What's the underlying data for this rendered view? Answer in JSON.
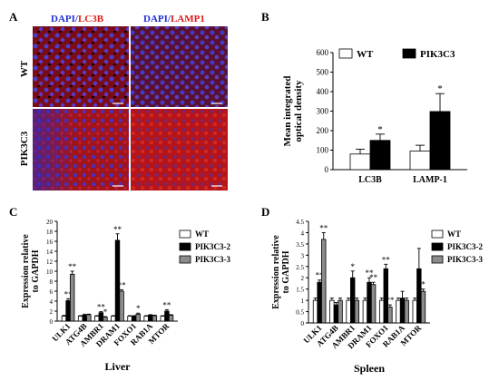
{
  "panel_a": {
    "letter": "A",
    "col1": {
      "dapi": "DAPI",
      "slash": "/",
      "marker": "LC3B"
    },
    "col2": {
      "dapi": "DAPI",
      "slash": "/",
      "marker": "LAMP1"
    },
    "rows": [
      "WT",
      "PIK3C3"
    ]
  },
  "colors": {
    "dapi": "#1f2fd8",
    "marker": "#e01818",
    "black": "#000000",
    "gray": "#8c8c8c"
  },
  "chart_data": [
    {
      "panel": "B",
      "type": "bar",
      "ylabel": "Mean integrated optical density",
      "ylim": [
        0,
        600
      ],
      "yticks": [
        0,
        100,
        200,
        300,
        400,
        500,
        600
      ],
      "categories": [
        "LC3B",
        "LAMP-1"
      ],
      "series": [
        {
          "name": "WT",
          "color": "#ffffff",
          "values": [
            80,
            95
          ],
          "errors": [
            25,
            30
          ],
          "sig": [
            "",
            ""
          ]
        },
        {
          "name": "PIK3C3",
          "color": "#000000",
          "values": [
            150,
            298
          ],
          "errors": [
            32,
            92
          ],
          "sig": [
            "*",
            "*"
          ]
        }
      ]
    },
    {
      "panel": "C",
      "type": "bar",
      "ylabel": "Expression relative to GAPDH",
      "xlabel": "Liver",
      "ylim": [
        0,
        20
      ],
      "yticks": [
        0,
        2,
        4,
        6,
        8,
        10,
        12,
        14,
        16,
        18,
        20
      ],
      "categories": [
        "ULK1",
        "ATG4B",
        "AMBR1",
        "DRAM1",
        "FOXO1",
        "RAB1A",
        "MTOR"
      ],
      "series": [
        {
          "name": "WT",
          "color": "#ffffff",
          "values": [
            1,
            1,
            1,
            1,
            1,
            1,
            1
          ],
          "errors": [
            0.15,
            0.1,
            0.1,
            0.1,
            0.1,
            0.1,
            0.1
          ],
          "sig": [
            "",
            "",
            "",
            "",
            "",
            "",
            ""
          ]
        },
        {
          "name": "PIK3C3-2",
          "color": "#000000",
          "values": [
            4.1,
            1.2,
            1.7,
            16.2,
            1.0,
            1.2,
            2.0
          ],
          "errors": [
            0.4,
            0.2,
            0.2,
            1.3,
            0.1,
            0.1,
            0.3
          ],
          "sig": [
            "**",
            "",
            "**",
            "**",
            "",
            "",
            "**"
          ]
        },
        {
          "name": "PIK3C3-3",
          "color": "#8c8c8c",
          "values": [
            9.4,
            1.3,
            0.8,
            6.0,
            1.4,
            1.1,
            1.2
          ],
          "errors": [
            0.6,
            0.1,
            0.1,
            0.3,
            0.2,
            0.1,
            0.1
          ],
          "sig": [
            "**",
            "",
            "*",
            "**",
            "*",
            "",
            ""
          ]
        }
      ]
    },
    {
      "panel": "D",
      "type": "bar",
      "ylabel": "Expression relative to GAPDH",
      "xlabel": "Spleen",
      "ylim": [
        0,
        4.5
      ],
      "yticks": [
        0,
        0.5,
        1,
        1.5,
        2,
        2.5,
        3,
        3.5,
        4,
        4.5
      ],
      "categories": [
        "ULK1",
        "ATG4B",
        "AMBR1",
        "DRAM1",
        "FOXO1",
        "RAB1A",
        "MTOR"
      ],
      "series": [
        {
          "name": "WT",
          "color": "#ffffff",
          "values": [
            1,
            1,
            1,
            1,
            1,
            1,
            1
          ],
          "errors": [
            0.1,
            0.1,
            0.1,
            0.1,
            0.1,
            0.1,
            0.1
          ],
          "sig": [
            "",
            "",
            "",
            "",
            "",
            "",
            ""
          ]
        },
        {
          "name": "PIK3C3-2",
          "color": "#000000",
          "values": [
            1.8,
            0.8,
            2.0,
            1.8,
            2.4,
            1.1,
            2.4
          ],
          "errors": [
            0.1,
            0.1,
            0.3,
            0.2,
            0.2,
            0.3,
            0.9
          ],
          "sig": [
            "**",
            "",
            "*",
            "**",
            "**",
            "",
            ""
          ]
        },
        {
          "name": "PIK3C3-3",
          "color": "#8c8c8c",
          "values": [
            3.7,
            1.0,
            1.0,
            1.7,
            0.7,
            1.0,
            1.4
          ],
          "errors": [
            0.3,
            0.1,
            0.1,
            0.1,
            0.1,
            0.1,
            0.1
          ],
          "sig": [
            "**",
            "",
            "",
            "**",
            "**",
            "",
            "*"
          ]
        }
      ]
    }
  ]
}
